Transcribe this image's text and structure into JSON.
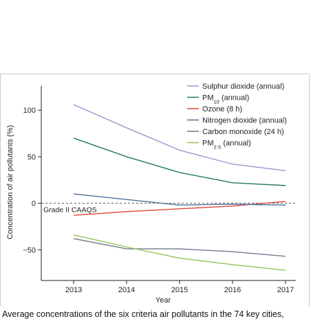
{
  "caption": "Average concentrations of the six criteria air pollutants in the 74 key cities,",
  "chart_data": {
    "type": "line",
    "title": "",
    "xlabel": "Year",
    "ylabel": "Concentration of air pollutants (%)",
    "categories": [
      "2013",
      "2014",
      "2015",
      "2016",
      "2017"
    ],
    "ylim": [
      -83,
      126
    ],
    "yticks": [
      100,
      50,
      0,
      -50
    ],
    "ytick_labels": [
      "100",
      "50",
      "0",
      "−50"
    ],
    "grid": false,
    "legend_position": "top-right",
    "reference_line": {
      "y": 0,
      "label": "Grade II CAAQS",
      "style": "dashed"
    },
    "series": [
      {
        "name": "Sulphur dioxide (annual)",
        "color": "#a98fcb",
        "values": [
          106,
          81,
          57,
          42,
          35
        ]
      },
      {
        "name": "PM10 (annual)",
        "name_main": "PM",
        "name_sub": "10",
        "name_rest": " (annual)",
        "color": "#1f7a54",
        "values": [
          70,
          50,
          33,
          22,
          19
        ]
      },
      {
        "name": "Ozone (8 h)",
        "color": "#e0443b",
        "values": [
          -13,
          -9,
          -6,
          -3,
          2
        ]
      },
      {
        "name": "Nitrogen dioxide (annual)",
        "color": "#4a6f9c",
        "values": [
          10,
          4,
          -2,
          -1,
          -2
        ]
      },
      {
        "name": "Carbon monoxide (24 h)",
        "color": "#6f7a8c",
        "values": [
          -38,
          -49,
          -49,
          -52,
          -57
        ]
      },
      {
        "name": "PM2·5 (annual)",
        "name_main": "PM",
        "name_sub": "2·5",
        "name_rest": " (annual)",
        "color": "#92c35a",
        "values": [
          -34,
          -47,
          -59,
          -66,
          -72
        ]
      }
    ]
  }
}
